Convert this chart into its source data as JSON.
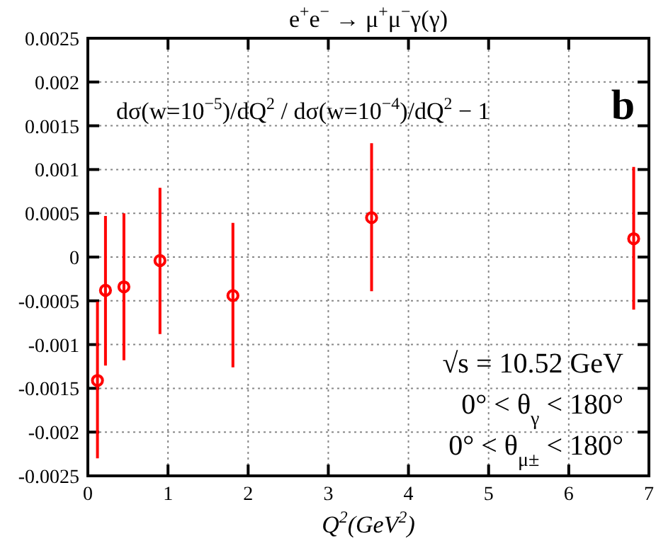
{
  "chart_data": {
    "type": "scatter",
    "title": "e$^{+}$e$^{−}$ → μ$^{+}$μ$^{−}$γ(γ)",
    "xlabel": "Q$^{2}$(GeV$^{2}$)",
    "annotations": [
      "dσ(w=10$^{−5}$)/dQ$^{2}$ / dσ(w=10$^{−4}$)/dQ$^{2}$ − 1",
      "b",
      "√s = 10.52 GeV",
      "0° < θ$_{γ}$ < 180°",
      "0° < θ$_{μ±}$ < 180°"
    ],
    "x": [
      0.12,
      0.22,
      0.45,
      0.9,
      1.81,
      3.54,
      6.81
    ],
    "series": [
      {
        "color": "#ff0000",
        "values": [
          -0.00141,
          -0.00038,
          -0.00034,
          -4e-05,
          -0.00044,
          0.00045,
          0.00021
        ],
        "errors": [
          [
            -0.0023,
            -0.00051
          ],
          [
            -0.00124,
            0.00047
          ],
          [
            -0.00118,
            0.0005
          ],
          [
            -0.00088,
            0.00079
          ],
          [
            -0.00126,
            0.00039
          ],
          [
            -0.00039,
            0.0013
          ],
          [
            -0.0006,
            0.00103
          ]
        ]
      }
    ],
    "xlim": [
      0,
      7
    ],
    "xticks": [
      0,
      1,
      2,
      3,
      4,
      5,
      6,
      7
    ],
    "ylim": [
      -0.0025,
      0.0025
    ],
    "yticks": [
      -0.0025,
      -0.002,
      -0.0015,
      -0.001,
      -0.0005,
      0,
      0.0005,
      0.001,
      0.0015,
      0.002,
      0.0025
    ],
    "grid": true,
    "marker": "circle"
  }
}
